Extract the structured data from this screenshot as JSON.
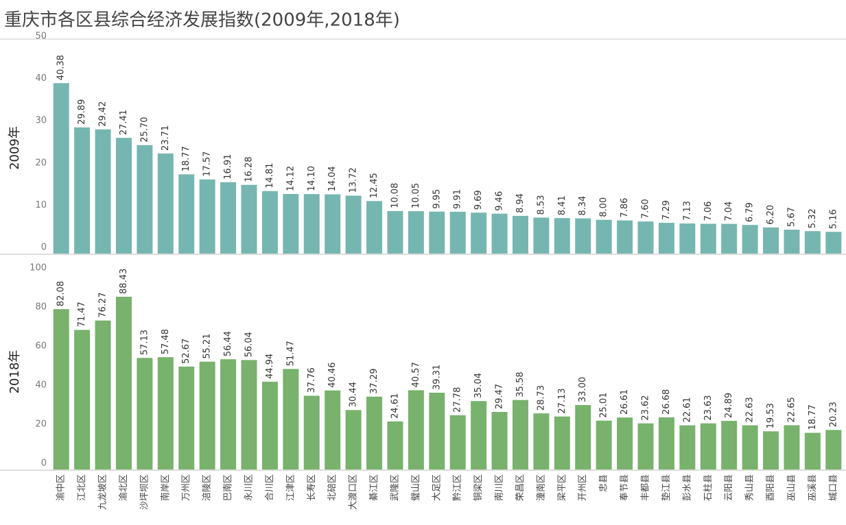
{
  "chart_data": {
    "type": "bar",
    "title": "重庆市各区县综合经济发展指数(2009年,2018年)",
    "categories": [
      "渝中区",
      "江北区",
      "九龙坡区",
      "渝北区",
      "沙坪坝区",
      "南岸区",
      "万州区",
      "涪陵区",
      "巴南区",
      "永川区",
      "合川区",
      "江津区",
      "长寿区",
      "北碚区",
      "大渡口区",
      "綦江区",
      "武隆区",
      "璧山区",
      "大足区",
      "黔江区",
      "铜梁区",
      "南川区",
      "荣昌区",
      "潼南区",
      "梁平区",
      "开州区",
      "忠县",
      "奉节县",
      "丰都县",
      "垫江县",
      "彭水县",
      "石柱县",
      "云阳县",
      "秀山县",
      "酉阳县",
      "巫山县",
      "巫溪县",
      "城口县"
    ],
    "panels": [
      {
        "ylabel": "2009年",
        "color": "#76b6b0",
        "ylim": [
          0,
          50
        ],
        "yticks": [
          0,
          10,
          20,
          30,
          40,
          50
        ],
        "values": [
          40.38,
          29.89,
          29.42,
          27.41,
          25.7,
          23.71,
          18.77,
          17.57,
          16.91,
          16.28,
          14.81,
          14.12,
          14.1,
          14.04,
          13.72,
          12.45,
          10.08,
          10.05,
          9.95,
          9.91,
          9.69,
          9.46,
          8.94,
          8.53,
          8.41,
          8.34,
          8.0,
          7.86,
          7.6,
          7.29,
          7.13,
          7.06,
          7.04,
          6.79,
          6.2,
          5.67,
          5.32,
          5.16
        ],
        "value_labels": [
          "40.38",
          "29.89",
          "29.42",
          "27.41",
          "25.70",
          "23.71",
          "18.77",
          "17.57",
          "16.91",
          "16.28",
          "14.81",
          "14.12",
          "14.10",
          "14.04",
          "13.72",
          "12.45",
          "10.08",
          "10.05",
          "9.95",
          "9.91",
          "9.69",
          "9.46",
          "8.94",
          "8.53",
          "8.41",
          "8.34",
          "8.00",
          "7.86",
          "7.60",
          "7.29",
          "7.13",
          "7.06",
          "7.04",
          "6.79",
          "6.20",
          "5.67",
          "5.32",
          "5.16"
        ]
      },
      {
        "ylabel": "2018年",
        "color": "#78b26c",
        "ylim": [
          0,
          100
        ],
        "yticks": [
          0,
          20,
          40,
          60,
          80,
          100
        ],
        "values": [
          82.08,
          71.47,
          76.27,
          88.43,
          57.13,
          57.48,
          52.67,
          55.21,
          56.44,
          56.04,
          44.94,
          51.47,
          37.76,
          40.46,
          30.44,
          37.29,
          24.61,
          40.57,
          39.31,
          27.78,
          35.04,
          29.47,
          35.58,
          28.73,
          27.13,
          33.0,
          25.01,
          26.61,
          23.62,
          26.68,
          22.61,
          23.63,
          24.89,
          22.63,
          19.53,
          22.65,
          18.77,
          20.23
        ],
        "value_labels": [
          "82.08",
          "71.47",
          "76.27",
          "88.43",
          "57.13",
          "57.48",
          "52.67",
          "55.21",
          "56.44",
          "56.04",
          "44.94",
          "51.47",
          "37.76",
          "40.46",
          "30.44",
          "37.29",
          "24.61",
          "40.57",
          "39.31",
          "27.78",
          "35.04",
          "29.47",
          "35.58",
          "28.73",
          "27.13",
          "33.00",
          "25.01",
          "26.61",
          "23.62",
          "26.68",
          "22.61",
          "23.63",
          "24.89",
          "22.63",
          "19.53",
          "22.65",
          "18.77",
          "20.23"
        ]
      }
    ]
  }
}
